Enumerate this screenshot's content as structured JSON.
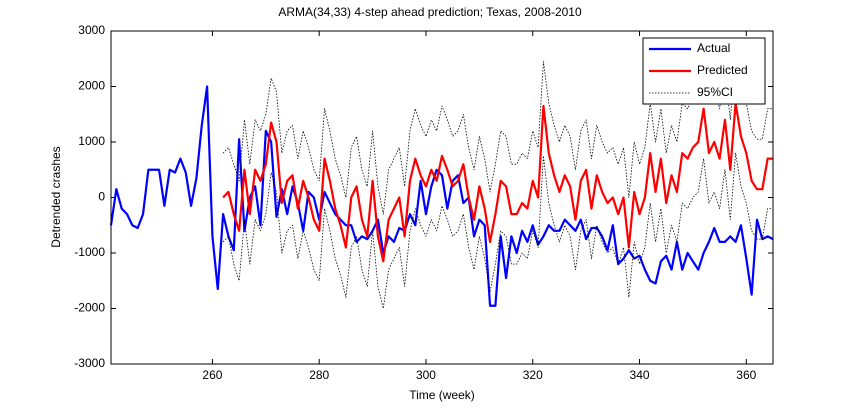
{
  "chart_data": {
    "type": "line",
    "title": "ARMA(34,33) 4-step ahead prediction; Texas, 2008-2010",
    "xlabel": "Time (week)",
    "ylabel": "Detrended crashes",
    "x": [
      241,
      242,
      243,
      244,
      245,
      246,
      247,
      248,
      249,
      250,
      251,
      252,
      253,
      254,
      255,
      256,
      257,
      258,
      259,
      260,
      261,
      262,
      263,
      264,
      265,
      266,
      267,
      268,
      269,
      270,
      271,
      272,
      273,
      274,
      275,
      276,
      277,
      278,
      279,
      280,
      281,
      282,
      283,
      284,
      285,
      286,
      287,
      288,
      289,
      290,
      291,
      292,
      293,
      294,
      295,
      296,
      297,
      298,
      299,
      300,
      301,
      302,
      303,
      304,
      305,
      306,
      307,
      308,
      309,
      310,
      311,
      312,
      313,
      314,
      315,
      316,
      317,
      318,
      319,
      320,
      321,
      322,
      323,
      324,
      325,
      326,
      327,
      328,
      329,
      330,
      331,
      332,
      333,
      334,
      335,
      336,
      337,
      338,
      339,
      340,
      341,
      342,
      343,
      344,
      345,
      346,
      347,
      348,
      349,
      350,
      351,
      352,
      353,
      354,
      355,
      356,
      357,
      358,
      359,
      360,
      361,
      362,
      363,
      364,
      365
    ],
    "xlim": [
      241,
      365
    ],
    "xticks": [
      260,
      280,
      300,
      320,
      340,
      360
    ],
    "ylim": [
      -3000,
      3000
    ],
    "yticks": [
      -3000,
      -2000,
      -1000,
      0,
      1000,
      2000,
      3000
    ],
    "grid": false,
    "legend": "upper right",
    "series": [
      {
        "name": "Actual",
        "color": "#0000ff",
        "dash": false,
        "values": [
          -500,
          150,
          -200,
          -300,
          -500,
          -550,
          -300,
          500,
          500,
          500,
          -150,
          500,
          450,
          700,
          450,
          -150,
          350,
          1300,
          2000,
          -700,
          -1650,
          -300,
          -700,
          -950,
          1050,
          -600,
          0,
          200,
          -500,
          1200,
          1000,
          -350,
          150,
          -300,
          200,
          -100,
          -600,
          100,
          0,
          -400,
          100,
          -100,
          -300,
          -400,
          -500,
          -500,
          -800,
          -700,
          -750,
          -600,
          -400,
          -1000,
          -700,
          -800,
          -550,
          -600,
          -300,
          -500,
          300,
          -300,
          200,
          500,
          400,
          -200,
          300,
          400,
          -100,
          0,
          -700,
          -400,
          -500,
          -1950,
          -1950,
          -700,
          -1450,
          -700,
          -1000,
          -600,
          -800,
          -500,
          -850,
          -700,
          -500,
          -600,
          -600,
          -400,
          -500,
          -600,
          -400,
          -750,
          -550,
          -550,
          -700,
          -950,
          -500,
          -1200,
          -1100,
          -950,
          -1100,
          -1050,
          -1300,
          -1500,
          -1550,
          -1150,
          -1050,
          -1300,
          -800,
          -1300,
          -1000,
          -1150,
          -1300,
          -1000,
          -800,
          -550,
          -800,
          -800,
          -700,
          -800,
          -500,
          -1100,
          -1750,
          -400,
          -750,
          -700,
          -750
        ]
      },
      {
        "name": "Predicted",
        "color": "#ff0000",
        "dash": false,
        "values": [
          null,
          null,
          null,
          null,
          null,
          null,
          null,
          null,
          null,
          null,
          null,
          null,
          null,
          null,
          null,
          null,
          null,
          null,
          null,
          null,
          null,
          0,
          100,
          -300,
          -600,
          500,
          -300,
          500,
          300,
          600,
          1350,
          1000,
          -100,
          300,
          400,
          -200,
          300,
          0,
          -400,
          -600,
          700,
          300,
          -200,
          -500,
          -900,
          0,
          200,
          -400,
          -700,
          300,
          -700,
          -1150,
          -400,
          -200,
          0,
          -700,
          300,
          700,
          400,
          200,
          500,
          300,
          750,
          500,
          200,
          300,
          600,
          0,
          -400,
          200,
          -200,
          -800,
          -300,
          300,
          200,
          -300,
          -300,
          -100,
          -200,
          300,
          0,
          1650,
          800,
          400,
          100,
          400,
          200,
          -400,
          300,
          500,
          -200,
          400,
          100,
          -100,
          0,
          -300,
          0,
          -900,
          100,
          -300,
          0,
          800,
          100,
          700,
          -100,
          400,
          100,
          800,
          700,
          900,
          1000,
          1600,
          800,
          1000,
          700,
          1400,
          500,
          1700,
          1100,
          800,
          300,
          150,
          150,
          700,
          700
        ]
      },
      {
        "name": "95%CI",
        "color": "#000000",
        "dash": true,
        "values": [
          null,
          null,
          null,
          null,
          null,
          null,
          null,
          null,
          null,
          null,
          null,
          null,
          null,
          null,
          null,
          null,
          null,
          null,
          null,
          null,
          null,
          800,
          900,
          600,
          300,
          1400,
          600,
          1400,
          1200,
          1500,
          2150,
          1900,
          800,
          1200,
          1300,
          700,
          1200,
          900,
          500,
          300,
          1600,
          1200,
          700,
          400,
          0,
          900,
          1100,
          500,
          200,
          1200,
          200,
          -300,
          500,
          700,
          900,
          200,
          1200,
          1600,
          1300,
          1100,
          1400,
          1200,
          1650,
          1400,
          1100,
          1200,
          1500,
          900,
          500,
          1100,
          700,
          100,
          600,
          1200,
          1100,
          600,
          600,
          800,
          700,
          1200,
          900,
          2450,
          1700,
          1300,
          1000,
          1300,
          1100,
          500,
          1200,
          1400,
          700,
          1300,
          1000,
          800,
          900,
          600,
          900,
          0,
          1000,
          600,
          900,
          1700,
          1000,
          1600,
          800,
          1300,
          1000,
          1700,
          1600,
          1800,
          1900,
          2500,
          1700,
          1900,
          1600,
          2300,
          1400,
          2600,
          2000,
          1700,
          1200,
          1050,
          1050,
          1600,
          1600
        ],
        "lower": [
          null,
          null,
          null,
          null,
          null,
          null,
          null,
          null,
          null,
          null,
          null,
          null,
          null,
          null,
          null,
          null,
          null,
          null,
          null,
          null,
          null,
          -800,
          -700,
          -1200,
          -1500,
          -400,
          -1200,
          -400,
          -600,
          -300,
          450,
          100,
          -1000,
          -600,
          -500,
          -1100,
          -600,
          -900,
          -1300,
          -1500,
          -200,
          -600,
          -1100,
          -1400,
          -1800,
          -900,
          -700,
          -1300,
          -1600,
          -600,
          -1600,
          -2000,
          -1300,
          -1100,
          -900,
          -1600,
          -600,
          -200,
          -500,
          -700,
          -400,
          -600,
          -150,
          -400,
          -700,
          -600,
          -300,
          -900,
          -1300,
          -700,
          -1100,
          -1700,
          -1200,
          -600,
          -700,
          -1200,
          -1200,
          -1000,
          -1100,
          -600,
          -900,
          750,
          -100,
          -500,
          -800,
          -500,
          -700,
          -1300,
          -600,
          -400,
          -1100,
          -500,
          -800,
          -1000,
          -900,
          -1200,
          -900,
          -1800,
          -800,
          -1200,
          -900,
          -100,
          -800,
          -200,
          -1000,
          -500,
          -800,
          -100,
          -200,
          0,
          100,
          700,
          -100,
          100,
          -200,
          500,
          -400,
          800,
          200,
          -100,
          -600,
          -750,
          -750,
          -200,
          -200
        ]
      }
    ]
  }
}
